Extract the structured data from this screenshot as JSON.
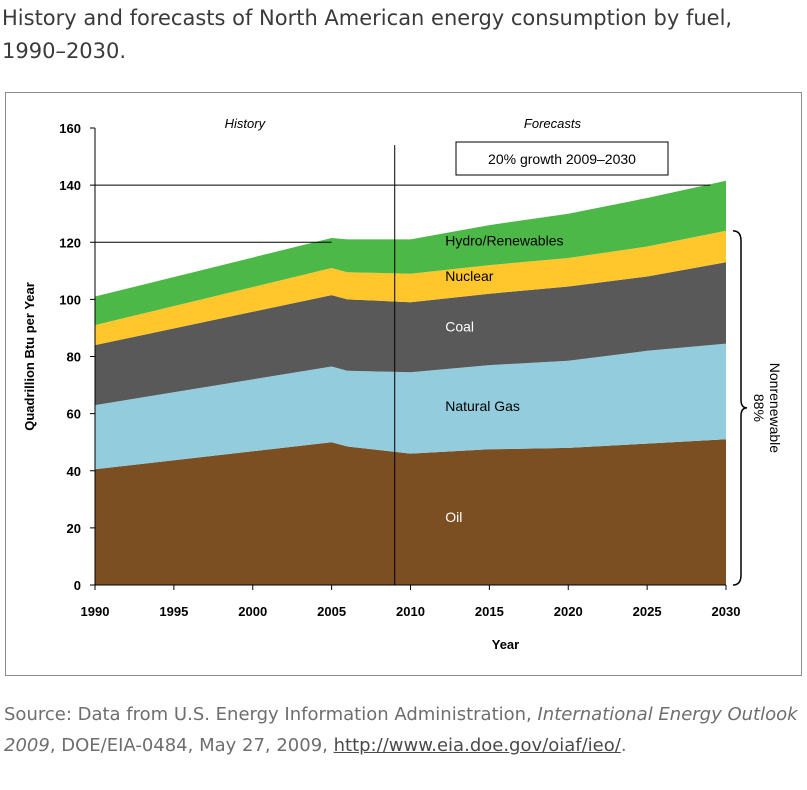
{
  "title": "History and forecasts of North American energy consumption by fuel, 1990–2030.",
  "source": {
    "prefix": "Source: Data from U.S. Energy Information Administration, ",
    "publication": "International Energy Outlook 2009",
    "details": ", DOE/EIA-0484, May 27, 2009, ",
    "link": "http://www.eia.doe.gov/oiaf/ieo/",
    "suffix": "."
  },
  "colors": {
    "Oil": "#7b4f22",
    "Natural Gas": "#93cddd",
    "Coal": "#595959",
    "Nuclear": "#ffc72c",
    "Hydro/Renewables": "#4cb848"
  },
  "chart_data": {
    "type": "area",
    "stacked": true,
    "title": "",
    "xlabel": "Year",
    "ylabel": "Quadrillion Btu per Year",
    "xlim": [
      1990,
      2030
    ],
    "ylim": [
      0,
      160
    ],
    "xticks": [
      1990,
      1995,
      2000,
      2005,
      2010,
      2015,
      2020,
      2025,
      2030
    ],
    "yticks": [
      0,
      20,
      40,
      60,
      80,
      100,
      120,
      140,
      160
    ],
    "x": [
      1990,
      2005,
      2006,
      2010,
      2015,
      2020,
      2025,
      2030
    ],
    "series": [
      {
        "name": "Oil",
        "values": [
          40.5,
          50,
          48.5,
          46,
          47.5,
          48,
          49.5,
          51
        ]
      },
      {
        "name": "Natural Gas",
        "values": [
          22.5,
          26.5,
          26.5,
          28.5,
          29.5,
          30.5,
          32.5,
          33.5
        ]
      },
      {
        "name": "Coal",
        "values": [
          21,
          25,
          25,
          24.5,
          25,
          26,
          26,
          28.5
        ]
      },
      {
        "name": "Nuclear",
        "values": [
          7,
          9.5,
          9.5,
          10,
          10,
          10,
          10.5,
          11
        ]
      },
      {
        "name": "Hydro/Renewables",
        "values": [
          10,
          10.5,
          11.5,
          12,
          14,
          15.5,
          17,
          17.5
        ]
      }
    ],
    "divider_year": 2009,
    "reference_lines": [
      140,
      120
    ],
    "annotations": {
      "history": "History",
      "forecasts": "Forecasts",
      "growth": "20% growth  2009–2030",
      "bracket_label_line1": "Nonrenewable",
      "bracket_label_line2": "88%"
    }
  }
}
